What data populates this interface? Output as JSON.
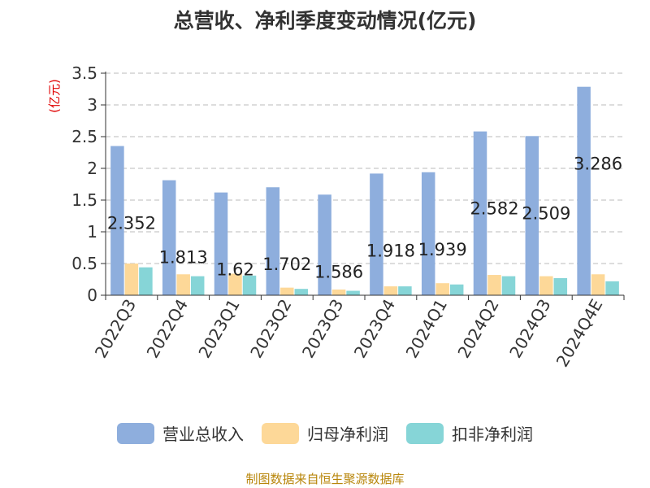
{
  "chart_data": {
    "type": "bar",
    "title": "总营收、净利季度变动情况(亿元)",
    "unit_label": "(亿元)",
    "categories": [
      "2022Q3",
      "2022Q4",
      "2023Q1",
      "2023Q2",
      "2023Q3",
      "2023Q4",
      "2024Q1",
      "2024Q2",
      "2024Q3",
      "2024Q4E"
    ],
    "series": [
      {
        "name": "营业总收入",
        "color": "#8eaedd",
        "values": [
          2.352,
          1.813,
          1.62,
          1.702,
          1.586,
          1.918,
          1.939,
          2.582,
          2.509,
          3.286
        ]
      },
      {
        "name": "归母净利润",
        "color": "#fdd898",
        "values": [
          0.5,
          0.33,
          0.34,
          0.12,
          0.09,
          0.14,
          0.19,
          0.32,
          0.3,
          0.33
        ]
      },
      {
        "name": "扣非净利润",
        "color": "#86d5d7",
        "values": [
          0.44,
          0.3,
          0.31,
          0.1,
          0.07,
          0.14,
          0.17,
          0.3,
          0.27,
          0.22
        ]
      }
    ],
    "data_labels": [
      "2.352",
      "1.813",
      "1.62",
      "1.702",
      "1.586",
      "1.918",
      "1.939",
      "2.582",
      "2.509",
      "3.286"
    ],
    "y_ticks": [
      "0",
      "0.5",
      "1",
      "1.5",
      "2",
      "2.5",
      "3",
      "3.5"
    ],
    "ylim": [
      0,
      3.5
    ],
    "grid": true,
    "legend_position": "bottom"
  },
  "source": "制图数据来自恒生聚源数据库"
}
